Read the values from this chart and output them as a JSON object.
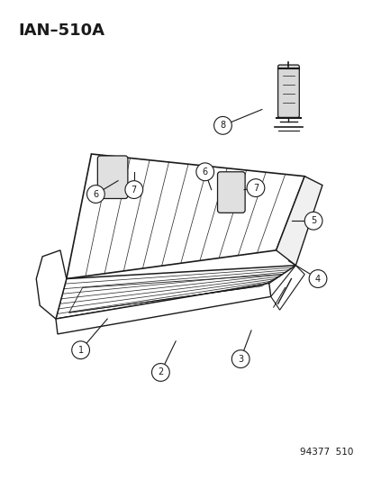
{
  "title": "IAN–510A",
  "footer": "94377  510",
  "background_color": "#ffffff",
  "line_color": "#1a1a1a",
  "figure_width": 4.14,
  "figure_height": 5.33,
  "dpi": 100
}
